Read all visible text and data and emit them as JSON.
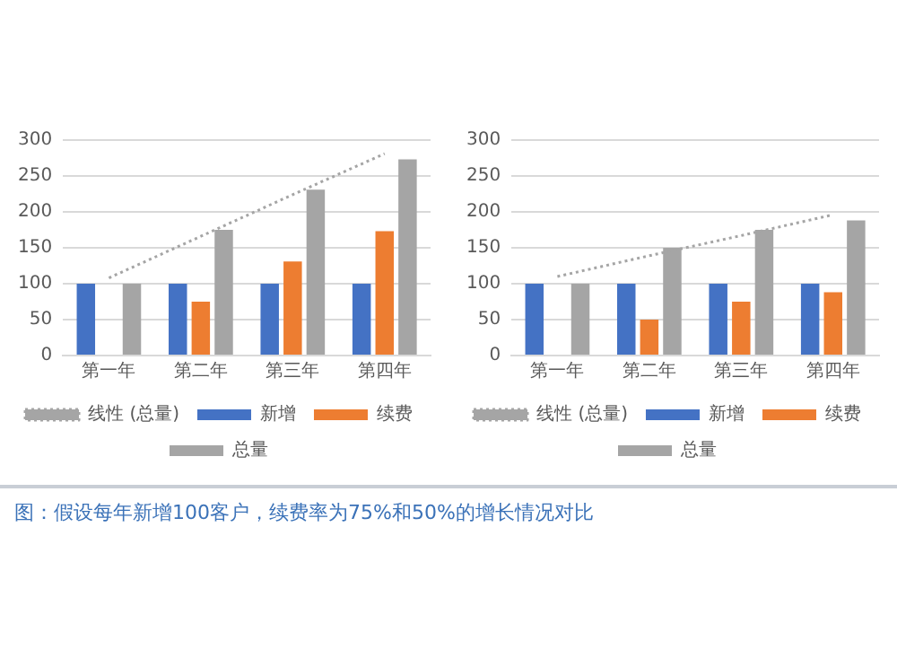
{
  "chart_data": [
    {
      "type": "bar",
      "categories": [
        "第一年",
        "第二年",
        "第三年",
        "第四年"
      ],
      "series": [
        {
          "name": "新增",
          "color": "#4472c4",
          "values": [
            100,
            100,
            100,
            100
          ]
        },
        {
          "name": "续费",
          "color": "#ed7d31",
          "values": [
            0,
            75,
            131,
            173
          ]
        },
        {
          "name": "总量",
          "color": "#a5a5a5",
          "values": [
            100,
            175,
            231,
            273
          ]
        },
        {
          "name": "线性 (总量)",
          "type": "line",
          "color": "#a5a5a5",
          "line_style": "dotted",
          "marker": "none",
          "values": [
            108,
            166,
            224,
            281
          ]
        }
      ],
      "ylim": [
        0,
        300
      ],
      "yticks": [
        0,
        50,
        100,
        150,
        200,
        250,
        300
      ],
      "grid": "y",
      "legend": "bottom",
      "annotations": [
        "图：假设每年新增100客户，续费率为75%和50%的增长情况对比"
      ]
    },
    {
      "type": "bar",
      "categories": [
        "第一年",
        "第二年",
        "第三年",
        "第四年"
      ],
      "series": [
        {
          "name": "新增",
          "color": "#4472c4",
          "values": [
            100,
            100,
            100,
            100
          ]
        },
        {
          "name": "续费",
          "color": "#ed7d31",
          "values": [
            0,
            50,
            75,
            88
          ]
        },
        {
          "name": "总量",
          "color": "#a5a5a5",
          "values": [
            100,
            150,
            175,
            188
          ]
        },
        {
          "name": "线性 (总量)",
          "type": "line",
          "color": "#a5a5a5",
          "line_style": "dotted",
          "marker": "none",
          "values": [
            110,
            139,
            167,
            196
          ]
        }
      ],
      "ylim": [
        0,
        300
      ],
      "yticks": [
        0,
        50,
        100,
        150,
        200,
        250,
        300
      ],
      "grid": "y",
      "legend": "bottom"
    }
  ]
}
